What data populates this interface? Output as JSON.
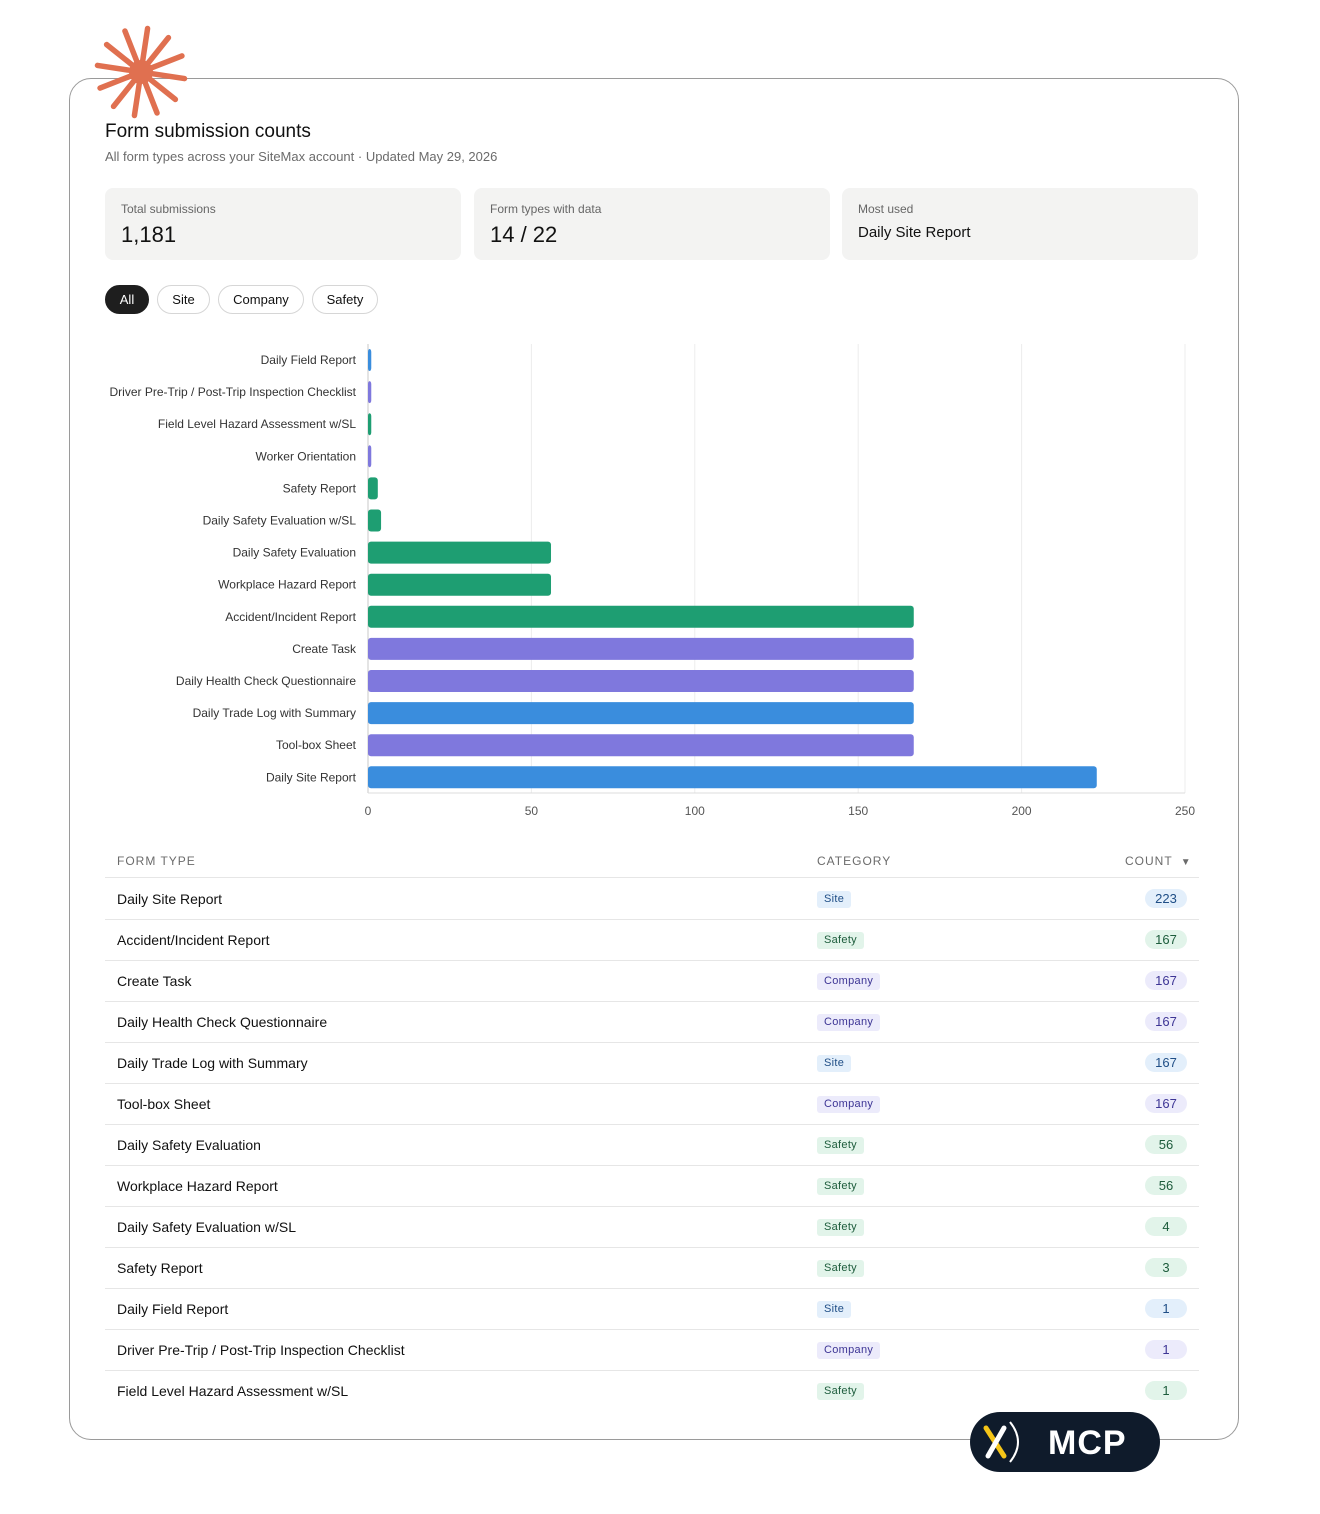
{
  "header": {
    "title": "Form submission counts",
    "subtitle": "All form types across your SiteMax account · Updated May 29, 2026"
  },
  "stats": [
    {
      "label": "Total submissions",
      "value": "1,181"
    },
    {
      "label": "Form types with data",
      "value": "14 / 22"
    },
    {
      "label": "Most used",
      "value": "Daily Site Report"
    }
  ],
  "filters": [
    "All",
    "Site",
    "Company",
    "Safety"
  ],
  "active_filter": "All",
  "colors": {
    "Site": "#3a8ddd",
    "Company": "#7f78dd",
    "Safety": "#1e9e72"
  },
  "chart_data": {
    "type": "bar",
    "orientation": "horizontal",
    "categories": [
      "Daily Field Report",
      "Driver Pre-Trip / Post-Trip Inspection Checklist",
      "Field Level Hazard Assessment w/SL",
      "Worker Orientation",
      "Safety Report",
      "Daily Safety Evaluation w/SL",
      "Daily Safety Evaluation",
      "Workplace Hazard Report",
      "Accident/Incident Report",
      "Create Task",
      "Daily Health Check Questionnaire",
      "Daily Trade Log with Summary",
      "Tool-box Sheet",
      "Daily Site Report"
    ],
    "values": [
      1,
      1,
      1,
      1,
      3,
      4,
      56,
      56,
      167,
      167,
      167,
      167,
      167,
      223
    ],
    "bar_categories": [
      "Site",
      "Company",
      "Safety",
      "Company",
      "Safety",
      "Safety",
      "Safety",
      "Safety",
      "Safety",
      "Company",
      "Company",
      "Site",
      "Company",
      "Site"
    ],
    "xlim": [
      0,
      250
    ],
    "xticks": [
      0,
      50,
      100,
      150,
      200,
      250
    ],
    "grid": "vertical"
  },
  "table": {
    "headers": {
      "form_type": "FORM TYPE",
      "category": "CATEGORY",
      "count": "COUNT",
      "sort_icon": "▼"
    },
    "rows": [
      {
        "name": "Daily Site Report",
        "category": "Site",
        "count": "223"
      },
      {
        "name": "Accident/Incident Report",
        "category": "Safety",
        "count": "167"
      },
      {
        "name": "Create Task",
        "category": "Company",
        "count": "167"
      },
      {
        "name": "Daily Health Check Questionnaire",
        "category": "Company",
        "count": "167"
      },
      {
        "name": "Daily Trade Log with Summary",
        "category": "Site",
        "count": "167"
      },
      {
        "name": "Tool-box Sheet",
        "category": "Company",
        "count": "167"
      },
      {
        "name": "Daily Safety Evaluation",
        "category": "Safety",
        "count": "56"
      },
      {
        "name": "Workplace Hazard Report",
        "category": "Safety",
        "count": "56"
      },
      {
        "name": "Daily Safety Evaluation w/SL",
        "category": "Safety",
        "count": "4"
      },
      {
        "name": "Safety Report",
        "category": "Safety",
        "count": "3"
      },
      {
        "name": "Daily Field Report",
        "category": "Site",
        "count": "1"
      },
      {
        "name": "Driver Pre-Trip / Post-Trip Inspection Checklist",
        "category": "Company",
        "count": "1"
      },
      {
        "name": "Field Level Hazard Assessment w/SL",
        "category": "Safety",
        "count": "1"
      }
    ]
  },
  "branding": {
    "badge_text": "MCP",
    "icon": "x-logo-icon",
    "burst_icon": "sparkle-burst-icon"
  }
}
